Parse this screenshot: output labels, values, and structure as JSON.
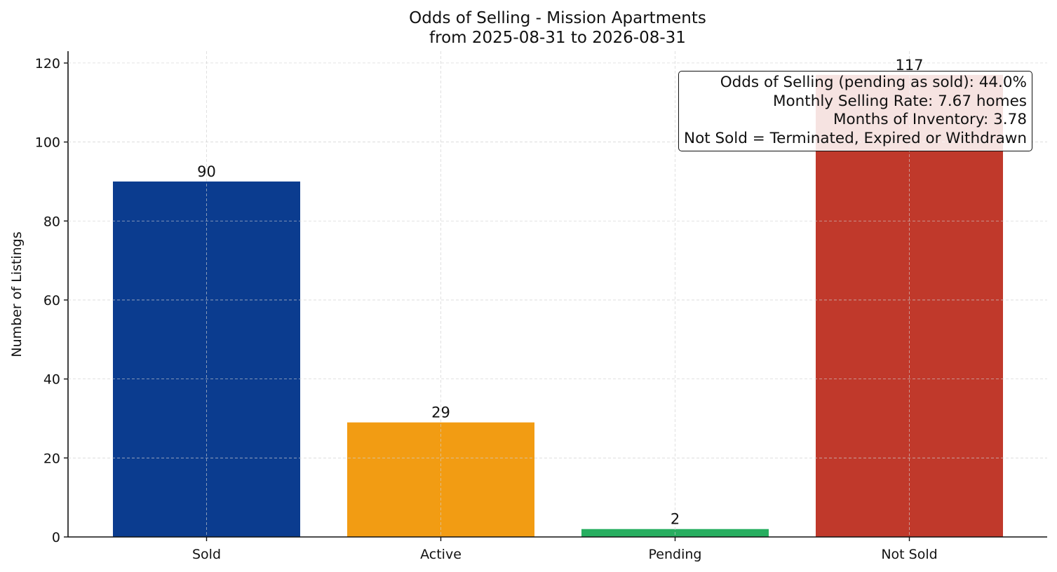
{
  "chart_data": {
    "type": "bar",
    "title": "Odds of Selling - Mission Apartments",
    "subtitle": "from 2025-08-31 to 2026-08-31",
    "xlabel": "",
    "ylabel": "Number of Listings",
    "categories": [
      "Sold",
      "Active",
      "Pending",
      "Not Sold"
    ],
    "values": [
      90,
      29,
      2,
      117
    ],
    "value_labels": [
      "90",
      "29",
      "2",
      "117"
    ],
    "colors": [
      "#0b3c8f",
      "#f29c13",
      "#27ae60",
      "#c0392b"
    ],
    "ylim": [
      0,
      123
    ],
    "yticks": [
      0,
      20,
      40,
      60,
      80,
      100,
      120
    ],
    "grid": true,
    "annotations": [
      "Odds of Selling (pending as sold): 44.0%",
      "Monthly Selling Rate: 7.67 homes",
      "Months of Inventory: 3.78",
      "Not Sold = Terminated, Expired or Withdrawn"
    ],
    "annotation_position": "top-right"
  }
}
